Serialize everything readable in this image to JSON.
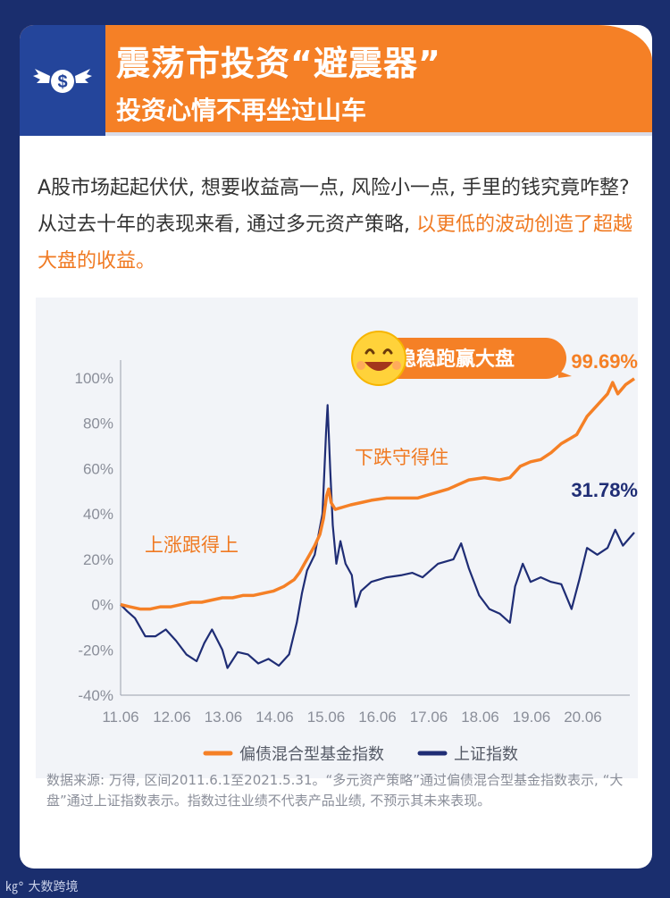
{
  "header": {
    "title": "震荡市投资“避震器”",
    "subtitle": "投资心情不再坐过山车",
    "logo_icon": "dollar-wings-icon"
  },
  "intro": {
    "text_plain": "A股市场起起伏伏, 想要收益高一点, 风险小一点, 手里的钱究竟咋整? 从过去十年的表现来看, 通过多元资产策略, ",
    "text_highlight": "以更低的波动创造了超越大盘的收益。"
  },
  "chart_data": {
    "type": "line",
    "x_ticks": [
      "11.06",
      "12.06",
      "13.06",
      "14.06",
      "15.06",
      "16.06",
      "17.06",
      "18.06",
      "19.06",
      "20.06"
    ],
    "y_ticks": [
      "100%",
      "80%",
      "60%",
      "40%",
      "20%",
      "0%",
      "-20%",
      "-40%"
    ],
    "ylim": [
      -40,
      100
    ],
    "xlim": [
      2011.42,
      2021.42
    ],
    "series": [
      {
        "name": "偏债混合型基金指数",
        "color": "#f58026",
        "points": [
          [
            2011.42,
            0
          ],
          [
            2011.6,
            -1
          ],
          [
            2011.8,
            -2
          ],
          [
            2012.0,
            -2
          ],
          [
            2012.2,
            -1
          ],
          [
            2012.4,
            -1
          ],
          [
            2012.6,
            0
          ],
          [
            2012.8,
            1
          ],
          [
            2013.0,
            1
          ],
          [
            2013.2,
            2
          ],
          [
            2013.4,
            3
          ],
          [
            2013.6,
            3
          ],
          [
            2013.8,
            4
          ],
          [
            2014.0,
            4
          ],
          [
            2014.2,
            5
          ],
          [
            2014.4,
            6
          ],
          [
            2014.6,
            8
          ],
          [
            2014.8,
            11
          ],
          [
            2014.9,
            14
          ],
          [
            2015.0,
            18
          ],
          [
            2015.1,
            22
          ],
          [
            2015.2,
            26
          ],
          [
            2015.3,
            31
          ],
          [
            2015.37,
            38
          ],
          [
            2015.43,
            48
          ],
          [
            2015.47,
            51
          ],
          [
            2015.52,
            45
          ],
          [
            2015.6,
            42
          ],
          [
            2015.75,
            43
          ],
          [
            2015.9,
            44
          ],
          [
            2016.1,
            45
          ],
          [
            2016.3,
            46
          ],
          [
            2016.6,
            47
          ],
          [
            2016.9,
            47
          ],
          [
            2017.2,
            47
          ],
          [
            2017.5,
            49
          ],
          [
            2017.8,
            51
          ],
          [
            2018.0,
            53
          ],
          [
            2018.2,
            55
          ],
          [
            2018.5,
            56
          ],
          [
            2018.8,
            55
          ],
          [
            2019.0,
            56
          ],
          [
            2019.2,
            61
          ],
          [
            2019.4,
            63
          ],
          [
            2019.6,
            64
          ],
          [
            2019.8,
            67
          ],
          [
            2020.0,
            71
          ],
          [
            2020.15,
            73
          ],
          [
            2020.3,
            75
          ],
          [
            2020.5,
            83
          ],
          [
            2020.7,
            88
          ],
          [
            2020.9,
            93
          ],
          [
            2021.0,
            98
          ],
          [
            2021.1,
            93
          ],
          [
            2021.25,
            97
          ],
          [
            2021.42,
            99.69
          ]
        ],
        "end_label": "99.69%"
      },
      {
        "name": "上证指数",
        "color": "#1f2d75",
        "points": [
          [
            2011.42,
            0
          ],
          [
            2011.55,
            -3
          ],
          [
            2011.7,
            -6
          ],
          [
            2011.9,
            -14
          ],
          [
            2012.1,
            -14
          ],
          [
            2012.3,
            -11
          ],
          [
            2012.5,
            -16
          ],
          [
            2012.7,
            -22
          ],
          [
            2012.9,
            -25
          ],
          [
            2013.05,
            -17
          ],
          [
            2013.2,
            -11
          ],
          [
            2013.4,
            -20
          ],
          [
            2013.5,
            -28
          ],
          [
            2013.7,
            -21
          ],
          [
            2013.9,
            -22
          ],
          [
            2014.1,
            -26
          ],
          [
            2014.3,
            -24
          ],
          [
            2014.5,
            -27
          ],
          [
            2014.7,
            -22
          ],
          [
            2014.85,
            -8
          ],
          [
            2014.95,
            5
          ],
          [
            2015.05,
            15
          ],
          [
            2015.2,
            22
          ],
          [
            2015.35,
            40
          ],
          [
            2015.42,
            76
          ],
          [
            2015.45,
            88
          ],
          [
            2015.5,
            60
          ],
          [
            2015.55,
            35
          ],
          [
            2015.62,
            18
          ],
          [
            2015.7,
            28
          ],
          [
            2015.8,
            18
          ],
          [
            2015.92,
            13
          ],
          [
            2016.0,
            -1
          ],
          [
            2016.1,
            6
          ],
          [
            2016.3,
            10
          ],
          [
            2016.6,
            12
          ],
          [
            2016.9,
            13
          ],
          [
            2017.1,
            14
          ],
          [
            2017.3,
            12
          ],
          [
            2017.6,
            18
          ],
          [
            2017.9,
            20
          ],
          [
            2018.05,
            27
          ],
          [
            2018.2,
            16
          ],
          [
            2018.4,
            4
          ],
          [
            2018.6,
            -2
          ],
          [
            2018.8,
            -4
          ],
          [
            2019.0,
            -8
          ],
          [
            2019.1,
            8
          ],
          [
            2019.25,
            18
          ],
          [
            2019.4,
            10
          ],
          [
            2019.6,
            12
          ],
          [
            2019.8,
            10
          ],
          [
            2020.0,
            9
          ],
          [
            2020.2,
            -2
          ],
          [
            2020.35,
            11
          ],
          [
            2020.5,
            25
          ],
          [
            2020.7,
            22
          ],
          [
            2020.9,
            25
          ],
          [
            2021.05,
            33
          ],
          [
            2021.2,
            26
          ],
          [
            2021.42,
            31.78
          ]
        ],
        "end_label": "31.78%"
      }
    ],
    "annotations": [
      "上涨跟得上",
      "下跌守得住",
      "稳稳跑赢大盘"
    ],
    "annotation_icon": "smiley-face-icon",
    "legend": [
      "偏债混合型基金指数",
      "上证指数"
    ],
    "legend_position": "bottom"
  },
  "source_note": "数据来源: 万得, 区间2011.6.1至2021.5.31。“多元资产策略”通过偏债混合型基金指数表示, “大盘”通过上证指数表示。指数过往业绩不代表产品业绩, 不预示其未来表现。",
  "footer": {
    "brand": "大数跨境",
    "brand_icon": "kd-logo-icon"
  }
}
